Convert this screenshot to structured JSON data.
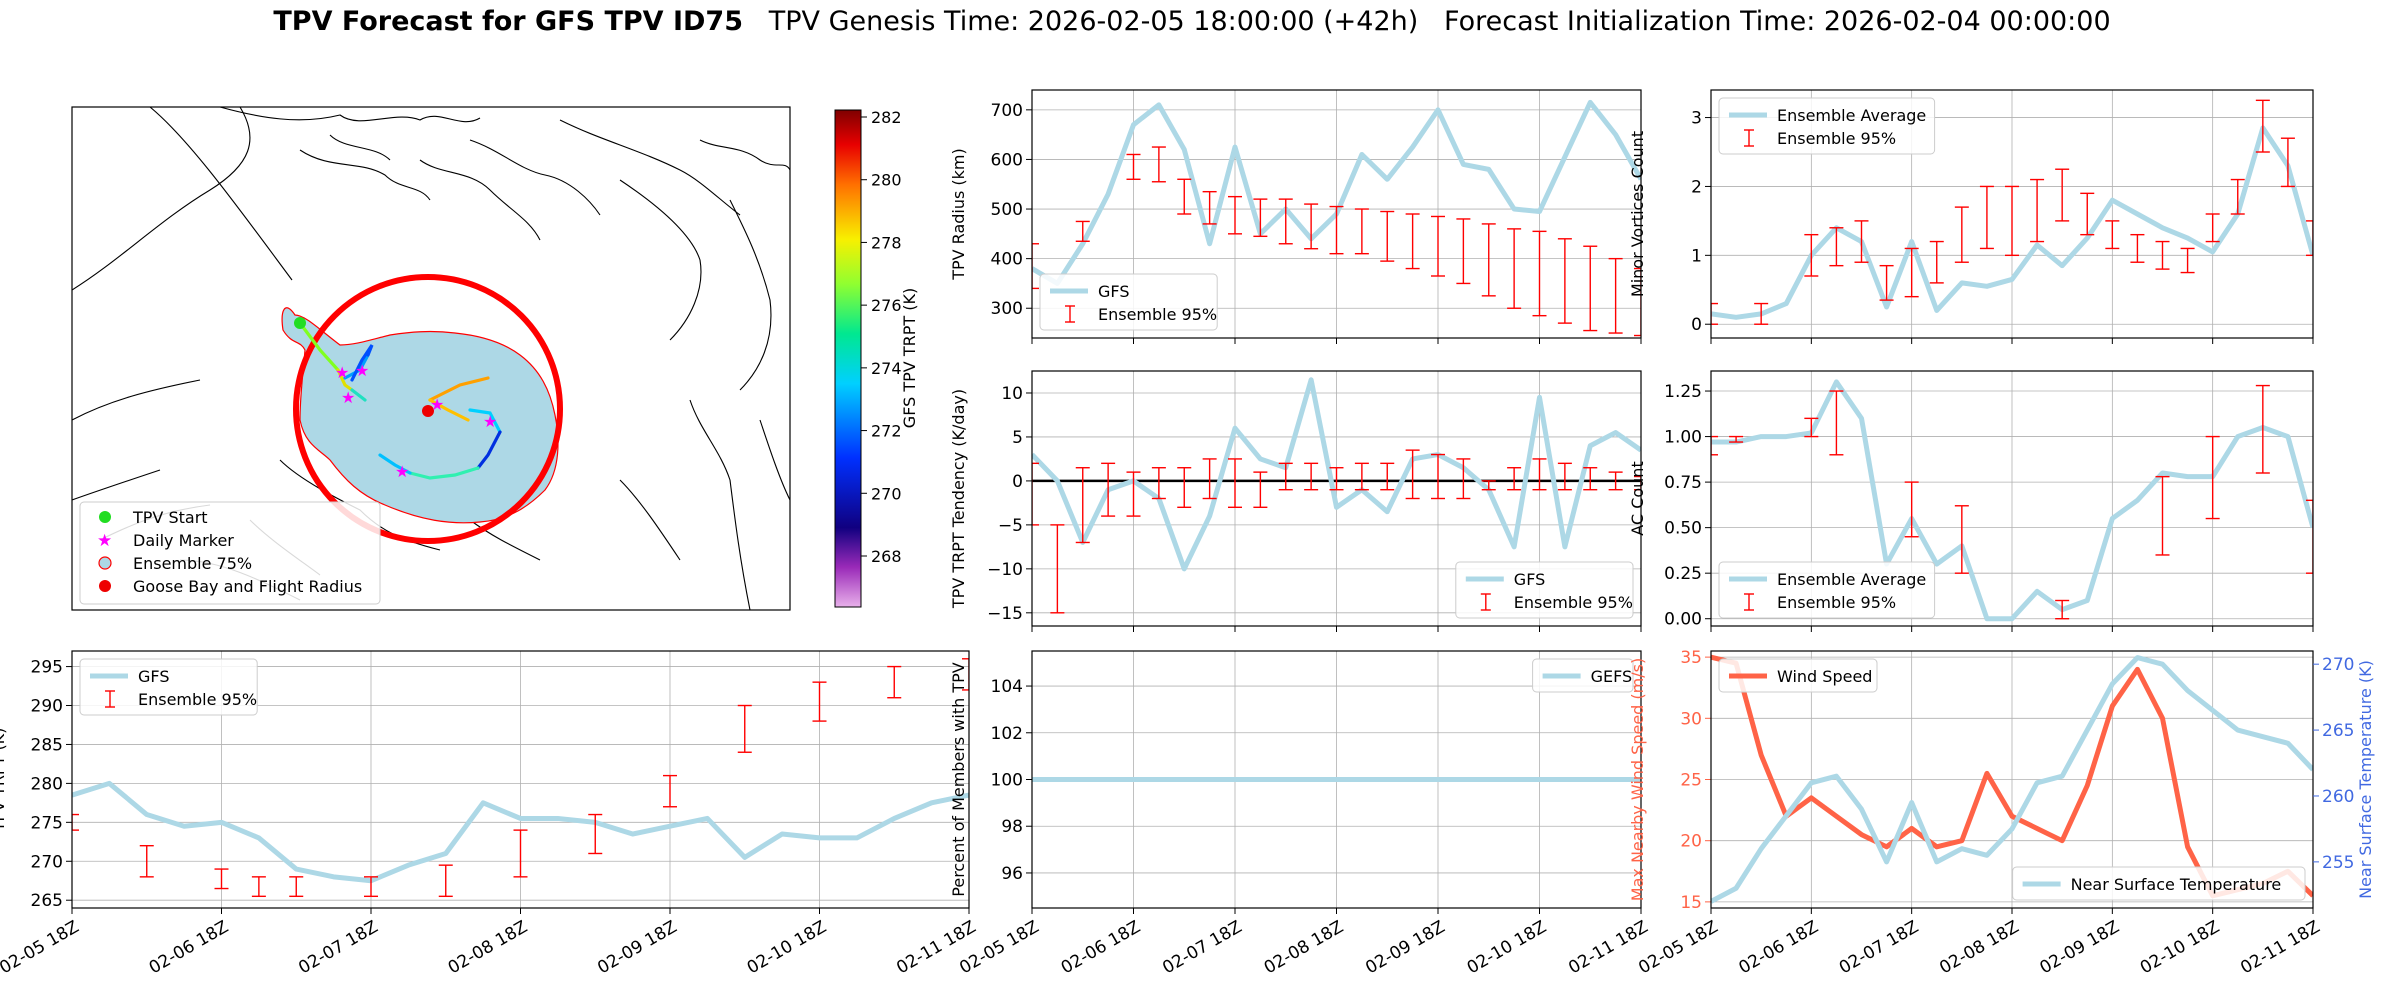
{
  "title": {
    "bold": "TPV Forecast for GFS TPV ID75",
    "rest": "   TPV Genesis Time: 2026-02-05 18:00:00 (+42h)   Forecast Initialization Time: 2026-02-04 00:00:00"
  },
  "colors": {
    "gfs": "#add8e6",
    "ensemble": "#ff0000",
    "wind": "#ff6347",
    "axis_wind": "#ff6347",
    "axis_temp": "#4169e1",
    "radius": "#ff0000"
  },
  "time_ticks": [
    "02-05 18Z",
    "02-06 18Z",
    "02-07 18Z",
    "02-08 18Z",
    "02-09 18Z",
    "02-10 18Z",
    "02-11 18Z"
  ],
  "map": {
    "colorbar_label": "GFS TPV TRPT (K)",
    "colorbar_ticks": [
      "282",
      "280",
      "278",
      "276",
      "274",
      "272",
      "270",
      "268"
    ],
    "legend": [
      "TPV Start",
      "Daily Marker",
      "Ensemble 75%",
      "Goose Bay and Flight Radius"
    ]
  },
  "chart_data": [
    {
      "id": "radius",
      "type": "line",
      "ylabel": "TPV Radius (km)",
      "ylim": [
        240,
        740
      ],
      "yticks": [
        "300",
        "400",
        "500",
        "600",
        "700"
      ],
      "series": [
        {
          "name": "GFS",
          "x": [
            0,
            0.25,
            0.5,
            0.75,
            1,
            1.25,
            1.5,
            1.75,
            2,
            2.25,
            2.5,
            2.75,
            3,
            3.25,
            3.5,
            3.75,
            4,
            4.25,
            4.5,
            4.75,
            5,
            5.25,
            5.5,
            5.75,
            6
          ],
          "values": [
            380,
            350,
            430,
            530,
            670,
            710,
            620,
            430,
            625,
            450,
            500,
            440,
            490,
            610,
            560,
            625,
            700,
            590,
            580,
            500,
            495,
            605,
            715,
            650,
            560
          ]
        },
        {
          "name": "Ensemble 95%",
          "kind": "errorbar",
          "x": [
            0,
            0.5,
            1,
            1.25,
            1.5,
            1.75,
            2,
            2.25,
            2.5,
            2.75,
            3,
            3.25,
            3.5,
            3.75,
            4,
            4.25,
            4.5,
            4.75,
            5,
            5.25,
            5.5,
            5.75,
            6
          ],
          "low": [
            340,
            435,
            560,
            555,
            490,
            470,
            450,
            445,
            430,
            420,
            410,
            410,
            395,
            380,
            365,
            350,
            325,
            300,
            285,
            270,
            255,
            250,
            245
          ],
          "high": [
            430,
            475,
            610,
            625,
            560,
            535,
            525,
            520,
            520,
            510,
            505,
            500,
            495,
            490,
            485,
            480,
            470,
            460,
            455,
            440,
            425,
            400,
            380
          ]
        }
      ]
    },
    {
      "id": "minor_vortices",
      "type": "line",
      "ylabel": "Minor Vortices Count",
      "ylim": [
        -0.2,
        3.4
      ],
      "yticks": [
        "0",
        "1",
        "2",
        "3"
      ],
      "series": [
        {
          "name": "Ensemble Average",
          "x": [
            0,
            0.25,
            0.5,
            0.75,
            1,
            1.25,
            1.5,
            1.75,
            2,
            2.25,
            2.5,
            2.75,
            3,
            3.25,
            3.5,
            3.75,
            4,
            4.25,
            4.5,
            4.75,
            5,
            5.25,
            5.5,
            5.75,
            6
          ],
          "values": [
            0.15,
            0.1,
            0.15,
            0.3,
            1.0,
            1.4,
            1.2,
            0.25,
            1.2,
            0.2,
            0.6,
            0.55,
            0.65,
            1.15,
            0.85,
            1.25,
            1.8,
            1.6,
            1.4,
            1.25,
            1.05,
            1.6,
            2.85,
            2.3,
            1.0
          ]
        },
        {
          "name": "Ensemble 95%",
          "kind": "errorbar",
          "x": [
            0,
            0.5,
            1,
            1.25,
            1.5,
            1.75,
            2,
            2.25,
            2.5,
            2.75,
            3,
            3.25,
            3.5,
            3.75,
            4,
            4.25,
            4.5,
            4.75,
            5,
            5.25,
            5.5,
            5.75,
            6
          ],
          "low": [
            0.0,
            0.0,
            0.7,
            0.85,
            0.9,
            0.35,
            0.4,
            0.6,
            0.9,
            1.1,
            1.0,
            1.2,
            1.5,
            1.3,
            1.1,
            0.9,
            0.8,
            0.75,
            1.2,
            1.6,
            2.5,
            2.0,
            1.0
          ],
          "high": [
            0.3,
            0.3,
            1.3,
            1.4,
            1.5,
            0.85,
            1.1,
            1.2,
            1.7,
            2.0,
            2.0,
            2.1,
            2.25,
            1.9,
            1.5,
            1.3,
            1.2,
            1.1,
            1.6,
            2.1,
            3.25,
            2.7,
            1.5
          ]
        }
      ]
    },
    {
      "id": "tendency",
      "type": "line",
      "ylabel": "TPV TRPT Tendency (K/day)",
      "ylim": [
        -16.5,
        12.5
      ],
      "yticks": [
        "10",
        "5",
        "0",
        "−5",
        "−10",
        "−15"
      ],
      "ytick_values": [
        10,
        5,
        0,
        -5,
        -10,
        -15
      ],
      "series": [
        {
          "name": "GFS",
          "x": [
            0,
            0.25,
            0.5,
            0.75,
            1,
            1.25,
            1.5,
            1.75,
            2,
            2.25,
            2.5,
            2.75,
            3,
            3.25,
            3.5,
            3.75,
            4,
            4.25,
            4.5,
            4.75,
            5,
            5.25,
            5.5,
            5.75,
            6
          ],
          "values": [
            3,
            0,
            -7,
            -1,
            0,
            -2,
            -10,
            -4,
            6,
            2.5,
            1.5,
            11.5,
            -3,
            -1,
            -3.5,
            2.5,
            3,
            1.5,
            -1,
            -7.5,
            9.5,
            -7.5,
            4,
            5.5,
            3.5
          ]
        },
        {
          "name": "Ensemble 95%",
          "kind": "errorbar",
          "x": [
            0,
            0.25,
            0.5,
            0.75,
            1,
            1.25,
            1.5,
            1.75,
            2,
            2.25,
            2.5,
            2.75,
            3,
            3.25,
            3.5,
            3.75,
            4,
            4.25,
            4.5,
            4.75,
            5,
            5.25,
            5.5,
            5.75,
            6
          ],
          "low": [
            -5,
            -15,
            -7,
            -4,
            -4,
            -2,
            -3,
            -2,
            -3,
            -3,
            -1,
            -1,
            -1,
            -1,
            -1,
            -2,
            -2,
            -2,
            -1,
            -1,
            -1,
            -1,
            -1,
            -1,
            -1
          ],
          "high": [
            2,
            -5,
            1.5,
            2,
            1,
            1.5,
            1.5,
            2.5,
            2.5,
            1,
            2,
            2,
            1.5,
            2,
            2,
            3.5,
            3,
            2.5,
            0,
            1.5,
            2.5,
            2,
            1.5,
            1,
            0.5
          ]
        }
      ]
    },
    {
      "id": "ac_count",
      "type": "line",
      "ylabel": "AC Count",
      "ylim": [
        -0.04,
        1.36
      ],
      "yticks": [
        "0.00",
        "0.25",
        "0.50",
        "0.75",
        "1.00",
        "1.25"
      ],
      "ytick_values": [
        0,
        0.25,
        0.5,
        0.75,
        1,
        1.25
      ],
      "series": [
        {
          "name": "Ensemble Average",
          "x": [
            0,
            0.25,
            0.5,
            0.75,
            1,
            1.25,
            1.5,
            1.75,
            2,
            2.25,
            2.5,
            2.75,
            3,
            3.25,
            3.5,
            3.75,
            4,
            4.25,
            4.5,
            4.75,
            5,
            5.25,
            5.5,
            5.75,
            6
          ],
          "values": [
            0.97,
            0.97,
            1.0,
            1.0,
            1.02,
            1.3,
            1.1,
            0.3,
            0.55,
            0.3,
            0.4,
            0.0,
            0.0,
            0.15,
            0.05,
            0.1,
            0.55,
            0.65,
            0.8,
            0.78,
            0.78,
            1.0,
            1.05,
            1.0,
            0.5
          ]
        },
        {
          "name": "Ensemble 95%",
          "kind": "errorbar",
          "x": [
            0,
            0.25,
            1,
            1.25,
            2,
            2.5,
            3.5,
            4.5,
            5,
            5.5,
            6
          ],
          "low": [
            0.9,
            0.97,
            1.0,
            0.9,
            0.45,
            0.25,
            0.0,
            0.35,
            0.55,
            0.8,
            0.25
          ],
          "high": [
            1.0,
            1.0,
            1.1,
            1.25,
            0.75,
            0.62,
            0.1,
            0.78,
            1.0,
            1.28,
            0.65
          ]
        }
      ]
    },
    {
      "id": "trpt",
      "type": "line",
      "ylabel": "TPV TRPT (K)",
      "ylim": [
        264,
        297
      ],
      "yticks": [
        "265",
        "270",
        "275",
        "280",
        "285",
        "290",
        "295"
      ],
      "ytick_values": [
        265,
        270,
        275,
        280,
        285,
        290,
        295
      ],
      "series": [
        {
          "name": "GFS",
          "x": [
            0,
            0.25,
            0.5,
            0.75,
            1,
            1.25,
            1.5,
            1.75,
            2,
            2.25,
            2.5,
            2.75,
            3,
            3.25,
            3.5,
            3.75,
            4,
            4.25,
            4.5,
            4.75,
            5,
            5.25,
            5.5,
            5.75,
            6
          ],
          "values": [
            278.5,
            280,
            276,
            274.5,
            275,
            273,
            269,
            268,
            267.5,
            269.5,
            271,
            277.5,
            275.5,
            275.5,
            275,
            273.5,
            274.5,
            275.5,
            270.5,
            273.5,
            273,
            273,
            275.5,
            277.5,
            278.5
          ]
        },
        {
          "name": "Ensemble 95%",
          "kind": "errorbar",
          "x": [
            0,
            0.5,
            1,
            1.25,
            1.5,
            2,
            2.5,
            3,
            3.5,
            4,
            4.5,
            5,
            5.5,
            6
          ],
          "low": [
            274,
            268,
            266.5,
            265.5,
            265.5,
            265.5,
            265.5,
            268,
            271,
            277,
            284,
            288,
            291,
            292
          ],
          "high": [
            276,
            272,
            269,
            268,
            268,
            268,
            269.5,
            274,
            276,
            281,
            290,
            293,
            295,
            296
          ]
        }
      ]
    },
    {
      "id": "members",
      "type": "line",
      "ylabel": "Percent of Members with TPV",
      "ylim": [
        94.5,
        105.5
      ],
      "yticks": [
        "96",
        "98",
        "100",
        "102",
        "104"
      ],
      "ytick_values": [
        96,
        98,
        100,
        102,
        104
      ],
      "series": [
        {
          "name": "GEFS",
          "x": [
            0,
            6
          ],
          "values": [
            100,
            100
          ]
        }
      ]
    },
    {
      "id": "wind_temp",
      "type": "line",
      "ylabel": "Max Nearby Wind Speed (m/s)",
      "ylabel_right": "Near Surface Temperature (K)",
      "ylim": [
        14.5,
        35.5
      ],
      "ylim_right": [
        251.5,
        271
      ],
      "yticks": [
        "15",
        "20",
        "25",
        "30",
        "35"
      ],
      "ytick_values": [
        15,
        20,
        25,
        30,
        35
      ],
      "yticks_right": [
        "255",
        "260",
        "265",
        "270"
      ],
      "ytick_values_right": [
        255,
        260,
        265,
        270
      ],
      "series": [
        {
          "name": "Wind Speed",
          "axis": "left",
          "x": [
            0,
            0.25,
            0.5,
            0.75,
            1,
            1.25,
            1.5,
            1.75,
            2,
            2.25,
            2.5,
            2.75,
            3,
            3.25,
            3.5,
            3.75,
            4,
            4.25,
            4.5,
            4.75,
            5,
            5.25,
            5.5,
            5.75,
            6
          ],
          "values": [
            35,
            34.5,
            27,
            22,
            23.5,
            22,
            20.5,
            19.5,
            21,
            19.5,
            20,
            25.5,
            22,
            21,
            20,
            24.5,
            31,
            34,
            30,
            19.5,
            15.5,
            16,
            16.5,
            17.5,
            15.5
          ]
        },
        {
          "name": "Near Surface Temperature",
          "axis": "right",
          "x": [
            0,
            0.25,
            0.5,
            0.75,
            1,
            1.25,
            1.5,
            1.75,
            2,
            2.25,
            2.5,
            2.75,
            3,
            3.25,
            3.5,
            3.75,
            4,
            4.25,
            4.5,
            4.75,
            5,
            5.25,
            5.5,
            5.75,
            6
          ],
          "values": [
            252,
            253,
            256,
            258.5,
            261,
            261.5,
            259,
            255,
            259.5,
            255,
            256,
            255.5,
            257.5,
            261,
            261.5,
            265,
            268.5,
            270.5,
            270,
            268,
            266.5,
            265,
            264.5,
            264,
            262
          ]
        }
      ]
    }
  ]
}
